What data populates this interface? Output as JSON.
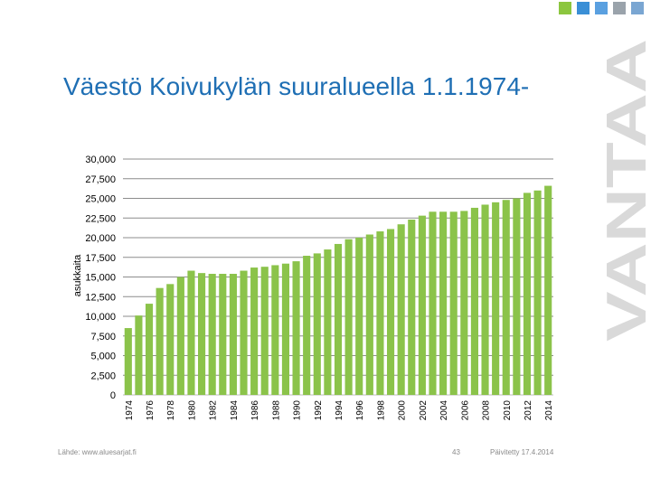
{
  "slide": {
    "title": "Väestö Koivukylän suuralueella 1.1.1974-",
    "brand": "VANTAA",
    "source": "Lähde: www.aluesarjat.fi",
    "page_number": "43",
    "updated": "Päivitetty 17.4.2014",
    "colors": {
      "title": "#1f6fb4",
      "bars": "#8bc34a",
      "grid": "#8c8c8c",
      "brand": "#d9d9d9",
      "squares": [
        "#8cc63f",
        "#3a8fd6",
        "#5aa0e0",
        "#9aa3ab",
        "#7aa6d2"
      ]
    }
  },
  "chart_data": {
    "type": "bar",
    "ylabel": "asukkaita",
    "xlabel": "",
    "ylim": [
      0,
      30000
    ],
    "y_ticks": [
      "0",
      "2,500",
      "5,000",
      "7,500",
      "10,000",
      "12,500",
      "15,000",
      "17,500",
      "20,000",
      "22,500",
      "25,000",
      "27,500",
      "30,000"
    ],
    "y_tick_values": [
      0,
      2500,
      5000,
      7500,
      10000,
      12500,
      15000,
      17500,
      20000,
      22500,
      25000,
      27500,
      30000
    ],
    "x_ticks": [
      "1974",
      "1976",
      "1978",
      "1980",
      "1982",
      "1984",
      "1986",
      "1988",
      "1990",
      "1992",
      "1994",
      "1996",
      "1998",
      "2000",
      "2002",
      "2004",
      "2006",
      "2008",
      "2010",
      "2012",
      "2014"
    ],
    "categories": [
      "1974",
      "1975",
      "1976",
      "1977",
      "1978",
      "1979",
      "1980",
      "1981",
      "1982",
      "1983",
      "1984",
      "1985",
      "1986",
      "1987",
      "1988",
      "1989",
      "1990",
      "1991",
      "1992",
      "1993",
      "1994",
      "1995",
      "1996",
      "1997",
      "1998",
      "1999",
      "2000",
      "2001",
      "2002",
      "2003",
      "2004",
      "2005",
      "2006",
      "2007",
      "2008",
      "2009",
      "2010",
      "2011",
      "2012",
      "2013",
      "2014"
    ],
    "values": [
      8500,
      10100,
      11600,
      13600,
      14100,
      15000,
      15800,
      15500,
      15400,
      15400,
      15400,
      15800,
      16200,
      16300,
      16500,
      16700,
      17000,
      17700,
      18000,
      18500,
      19200,
      19800,
      20000,
      20400,
      20800,
      21100,
      21700,
      22300,
      22800,
      23300,
      23300,
      23300,
      23400,
      23800,
      24200,
      24500,
      24800,
      25000,
      25700,
      26000,
      26600
    ],
    "grid": true
  }
}
